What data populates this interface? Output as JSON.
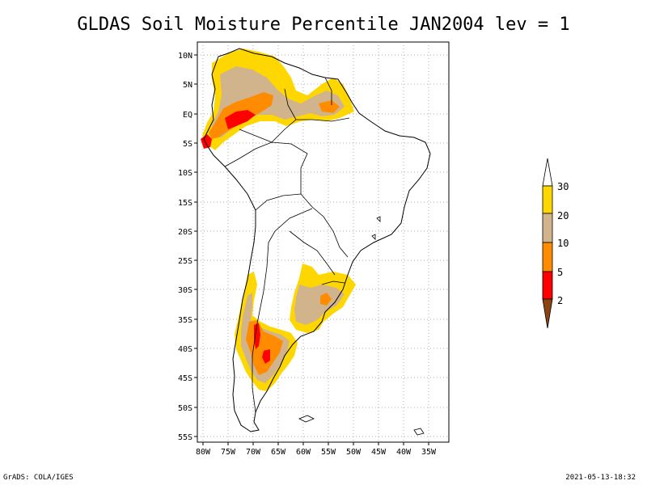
{
  "title": "GLDAS Soil Moisture Percentile JAN2004 lev = 1",
  "footer": {
    "left": "GrADS: COLA/IGES",
    "right": "2021-05-13-18:32"
  },
  "map": {
    "lat_labels": [
      "10N",
      "5N",
      "EQ",
      "5S",
      "10S",
      "15S",
      "20S",
      "25S",
      "30S",
      "35S",
      "40S",
      "45S",
      "50S",
      "55S"
    ],
    "lon_labels": [
      "80W",
      "75W",
      "70W",
      "65W",
      "60W",
      "55W",
      "50W",
      "45W",
      "40W",
      "35W"
    ],
    "lat_range": [
      -56,
      11
    ],
    "lon_range": [
      -81,
      -34
    ],
    "grid": true
  },
  "legend": {
    "labels": [
      "30",
      "20",
      "10",
      "5",
      "2"
    ],
    "colors": {
      "above_30": "#ffffff",
      "20_30": "#ffd700",
      "10_20": "#d2b48c",
      "5_10": "#ff8c00",
      "2_5": "#ff0000",
      "below_2": "#8b4513"
    }
  }
}
